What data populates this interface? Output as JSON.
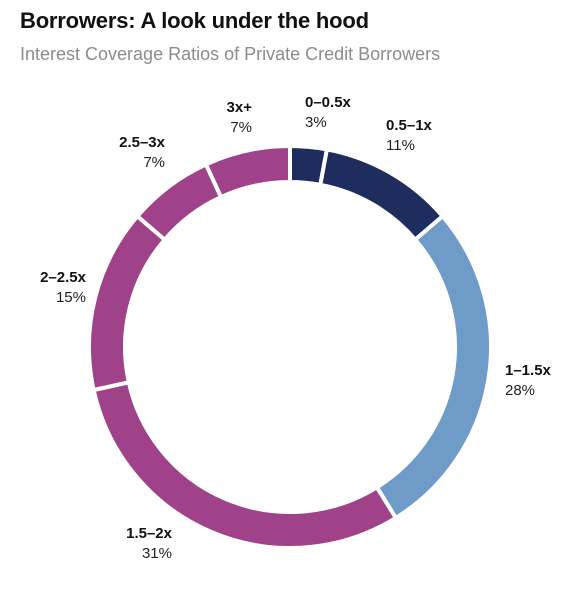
{
  "title": "Borrowers: A look under the hood",
  "subtitle": "Interest Coverage Ratios of Private Credit Borrowers",
  "chart_data": {
    "type": "pie",
    "variant": "donut",
    "title": "Borrowers: A look under the hood",
    "subtitle": "Interest Coverage Ratios of Private Credit Borrowers",
    "unit": "%",
    "categories": [
      "0–0.5x",
      "0.5–1x",
      "1–1.5x",
      "1.5–2x",
      "2–2.5x",
      "2.5–3x",
      "3x+"
    ],
    "values": [
      3,
      11,
      28,
      31,
      15,
      7,
      7
    ],
    "labels": [
      "3%",
      "11%",
      "28%",
      "31%",
      "15%",
      "7%",
      "7%"
    ],
    "colors": [
      "#1e2d5e",
      "#1e2d5e",
      "#6f9bc8",
      "#a0428a",
      "#a0428a",
      "#a0428a",
      "#a0428a"
    ],
    "legend": "none"
  }
}
